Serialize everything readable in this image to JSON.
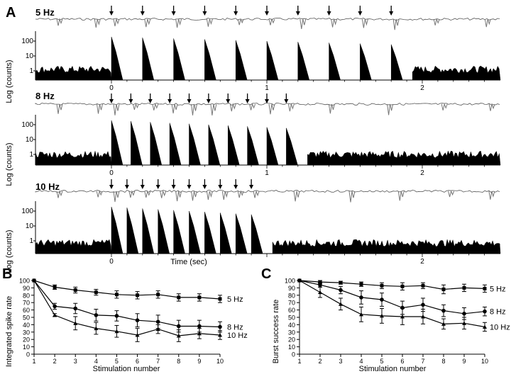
{
  "top": {
    "panel_label": "A",
    "traces": [
      {
        "label": "5 Hz",
        "rate_hz": 5,
        "stim_count": 10
      },
      {
        "label": "8 Hz",
        "rate_hz": 8,
        "stim_count": 10
      },
      {
        "label": "10 Hz",
        "rate_hz": 10,
        "stim_count": 10
      }
    ],
    "ylabel": "Log (counts)",
    "yticks": [
      "100",
      "10",
      "1"
    ],
    "xticks": [
      "0",
      "1",
      "2"
    ],
    "xlabel": "Time (sec)"
  },
  "chart_data": [
    {
      "panel": "B",
      "type": "line",
      "xlabel": "Stimulation number",
      "ylabel": "Integrated spike rate",
      "x": [
        1,
        2,
        3,
        4,
        5,
        6,
        7,
        8,
        9,
        10
      ],
      "xlim": [
        1,
        10
      ],
      "ylim": [
        0,
        100
      ],
      "yticks": [
        0,
        10,
        20,
        30,
        40,
        50,
        60,
        70,
        80,
        90,
        100
      ],
      "series": [
        {
          "name": "5 Hz",
          "values": [
            100,
            91,
            87,
            84,
            81,
            80,
            81,
            77,
            77,
            75
          ],
          "errors": [
            0,
            3,
            4,
            4,
            5,
            5,
            5,
            5,
            5,
            5
          ]
        },
        {
          "name": "8 Hz",
          "values": [
            100,
            65,
            62,
            53,
            52,
            46,
            44,
            38,
            38,
            37
          ],
          "errors": [
            0,
            4,
            7,
            8,
            7,
            9,
            9,
            8,
            8,
            7
          ]
        },
        {
          "name": "10 Hz",
          "values": [
            100,
            53,
            42,
            35,
            31,
            26,
            34,
            25,
            28,
            26
          ],
          "errors": [
            0,
            2,
            9,
            8,
            8,
            9,
            6,
            8,
            7,
            6
          ]
        }
      ]
    },
    {
      "panel": "C",
      "type": "line",
      "xlabel": "Stimulation number",
      "ylabel": "Burst success rate",
      "x": [
        1,
        2,
        3,
        4,
        5,
        6,
        7,
        8,
        9,
        10
      ],
      "xlim": [
        1,
        10
      ],
      "ylim": [
        0,
        100
      ],
      "yticks": [
        0,
        10,
        20,
        30,
        40,
        50,
        60,
        70,
        80,
        90,
        100
      ],
      "series": [
        {
          "name": "5 Hz",
          "values": [
            100,
            98,
            97,
            95,
            93,
            92,
            93,
            88,
            90,
            89
          ],
          "errors": [
            0,
            2,
            2,
            3,
            4,
            5,
            4,
            6,
            5,
            5
          ]
        },
        {
          "name": "8 Hz",
          "values": [
            100,
            94,
            87,
            77,
            74,
            63,
            67,
            59,
            55,
            58
          ],
          "errors": [
            0,
            3,
            5,
            9,
            9,
            9,
            9,
            8,
            8,
            6
          ]
        },
        {
          "name": "10 Hz",
          "values": [
            100,
            84,
            68,
            54,
            52,
            51,
            51,
            41,
            42,
            37
          ],
          "errors": [
            0,
            7,
            8,
            10,
            10,
            11,
            10,
            7,
            8,
            6
          ]
        }
      ]
    }
  ]
}
